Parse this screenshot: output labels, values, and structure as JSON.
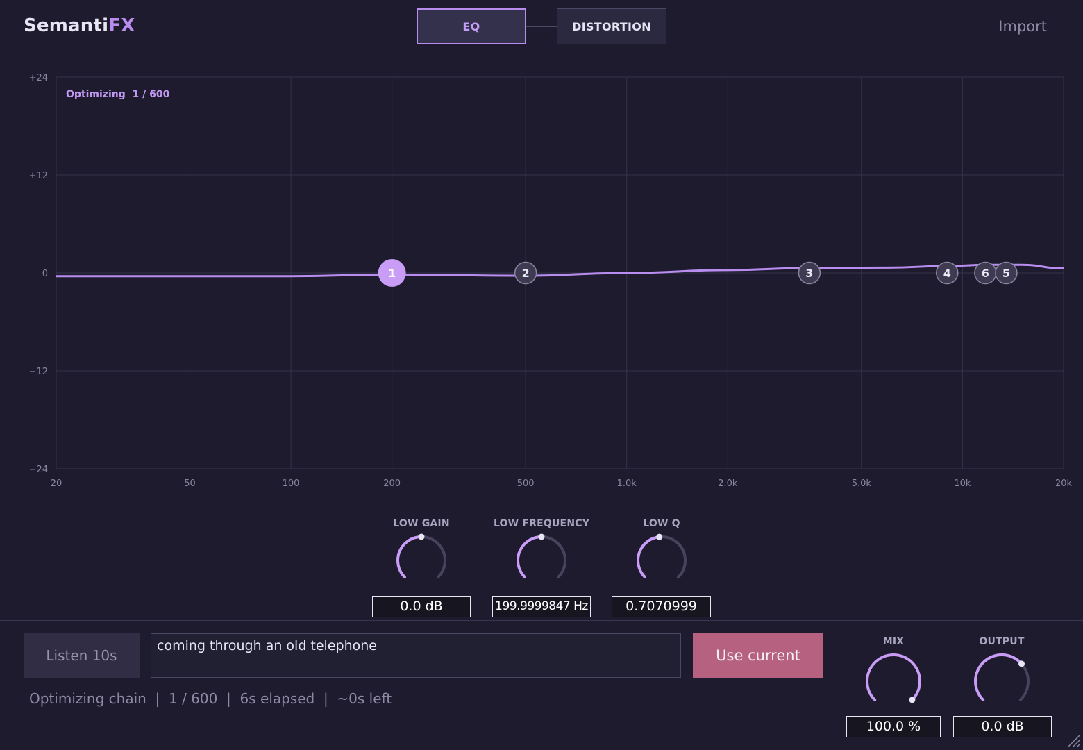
{
  "header": {
    "logo_a": "Semanti",
    "logo_b": "FX",
    "tabs": [
      {
        "label": "EQ",
        "active": true
      },
      {
        "label": "DISTORTION",
        "active": false
      }
    ],
    "import_label": "Import"
  },
  "graph": {
    "status_label": "Optimizing  1 / 600",
    "y_ticks": [
      "+24",
      "+12",
      "0",
      "−12",
      "−24"
    ],
    "x_ticks": [
      "20",
      "50",
      "100",
      "200",
      "500",
      "1.0k",
      "2.0k",
      "5.0k",
      "10k",
      "20k"
    ],
    "bands": [
      {
        "label": "1",
        "freq_hz": 200,
        "gain_db": 0.0,
        "selected": true
      },
      {
        "label": "2",
        "freq_hz": 500,
        "gain_db": 0.0,
        "selected": false
      },
      {
        "label": "3",
        "freq_hz": 3500,
        "gain_db": 0.0,
        "selected": false
      },
      {
        "label": "4",
        "freq_hz": 9000,
        "gain_db": 0.0,
        "selected": false
      },
      {
        "label": "6",
        "freq_hz": 11700,
        "gain_db": 0.0,
        "selected": false
      },
      {
        "label": "5",
        "freq_hz": 13500,
        "gain_db": 0.0,
        "selected": false
      }
    ],
    "response_curve": [
      [
        20,
        -0.4
      ],
      [
        100,
        -0.4
      ],
      [
        200,
        -0.2
      ],
      [
        500,
        -0.35
      ],
      [
        1000,
        0.0
      ],
      [
        2000,
        0.35
      ],
      [
        3500,
        0.6
      ],
      [
        6000,
        0.65
      ],
      [
        9000,
        0.85
      ],
      [
        12000,
        1.0
      ],
      [
        15000,
        1.0
      ],
      [
        20000,
        0.55
      ]
    ],
    "colors": {
      "accent": "#b98df0",
      "curve": "#b98df0",
      "node_fill": "#3d3a52",
      "node_stroke": "#8a86a0"
    }
  },
  "band_controls": [
    {
      "label": "LOW GAIN",
      "value": "0.0 dB",
      "knob_fraction": 0.5
    },
    {
      "label": "LOW FREQUENCY",
      "value": "199.9999847 Hz",
      "knob_fraction": 0.5
    },
    {
      "label": "LOW Q",
      "value": "0.7070999",
      "knob_fraction": 0.48
    }
  ],
  "footer": {
    "listen_label": "Listen 10s",
    "prompt_value": "coming through an old telephone",
    "use_current_label": "Use current",
    "status": "Optimizing chain  |  1 / 600  |  6s elapsed  |  ~0s left",
    "mix": {
      "label": "MIX",
      "value": "100.0 %",
      "knob_fraction": 1.0
    },
    "output": {
      "label": "OUTPUT",
      "value": "0.0 dB",
      "knob_fraction": 0.68
    }
  }
}
